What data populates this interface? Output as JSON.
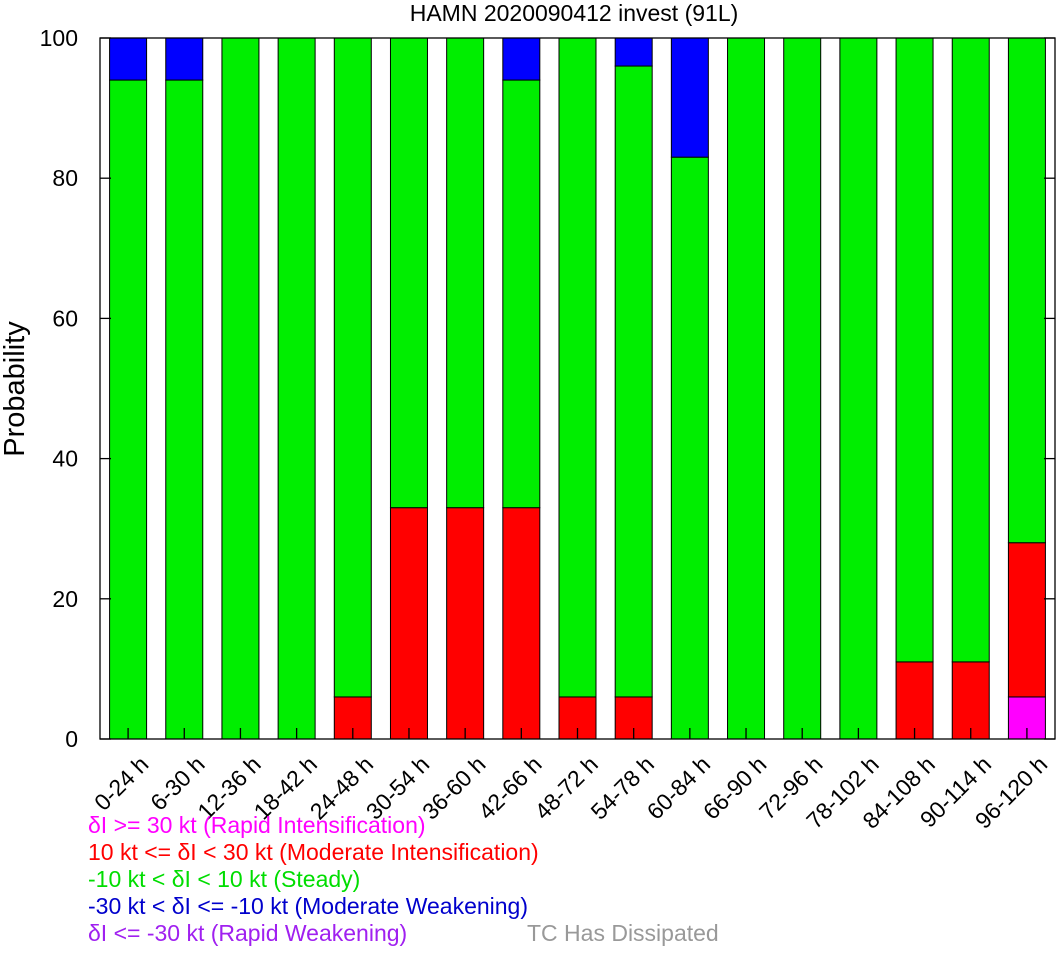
{
  "chart_data": {
    "type": "bar",
    "stacked": true,
    "title": "HAMN 2020090412 invest (91L)",
    "xlabel": "",
    "ylabel": "Probability",
    "ylim": [
      0,
      100
    ],
    "yticks": [
      0,
      20,
      40,
      60,
      80,
      100
    ],
    "grid": false,
    "categories": [
      "0-24 h",
      "6-30 h",
      "12-36 h",
      "18-42 h",
      "24-48 h",
      "30-54 h",
      "36-60 h",
      "42-66 h",
      "48-72 h",
      "54-78 h",
      "60-84 h",
      "66-90 h",
      "72-96 h",
      "78-102 h",
      "84-108 h",
      "90-114 h",
      "96-120 h"
    ],
    "series": [
      {
        "key": "rapid_intensification",
        "color": "#ff00ff",
        "values": [
          0,
          0,
          0,
          0,
          0,
          0,
          0,
          0,
          0,
          0,
          0,
          0,
          0,
          0,
          0,
          0,
          6
        ]
      },
      {
        "key": "moderate_intensification",
        "color": "#ff0000",
        "values": [
          0,
          0,
          0,
          0,
          6,
          33,
          33,
          33,
          6,
          6,
          0,
          0,
          0,
          0,
          11,
          11,
          22
        ]
      },
      {
        "key": "steady",
        "color": "#00ee00",
        "values": [
          94,
          94,
          100,
          100,
          94,
          67,
          67,
          61,
          94,
          90,
          83,
          100,
          100,
          100,
          89,
          89,
          72
        ]
      },
      {
        "key": "moderate_weakening",
        "color": "#0000ff",
        "values": [
          6,
          6,
          0,
          0,
          0,
          0,
          0,
          6,
          0,
          4,
          17,
          0,
          0,
          0,
          0,
          0,
          0
        ]
      },
      {
        "key": "rapid_weakening",
        "color": "#a020f0",
        "values": [
          0,
          0,
          0,
          0,
          0,
          0,
          0,
          0,
          0,
          0,
          0,
          0,
          0,
          0,
          0,
          0,
          0
        ]
      }
    ],
    "legend": {
      "placement": "bottom-left",
      "entries": [
        {
          "text": "δI >= 30 kt (Rapid Intensification)",
          "color": "#ff00ff"
        },
        {
          "text": "10 kt <= δI < 30 kt (Moderate Intensification)",
          "color": "#ff0000"
        },
        {
          "text": "-10 kt < δI < 10 kt (Steady)",
          "color": "#00dd00"
        },
        {
          "text": "-30 kt < δI <= -10 kt (Moderate Weakening)",
          "color": "#0000cc"
        },
        {
          "text": "δI <= -30 kt (Rapid Weakening)",
          "color": "#a020f0"
        },
        {
          "text": "TC Has Dissipated",
          "color": "#999999"
        }
      ]
    }
  }
}
